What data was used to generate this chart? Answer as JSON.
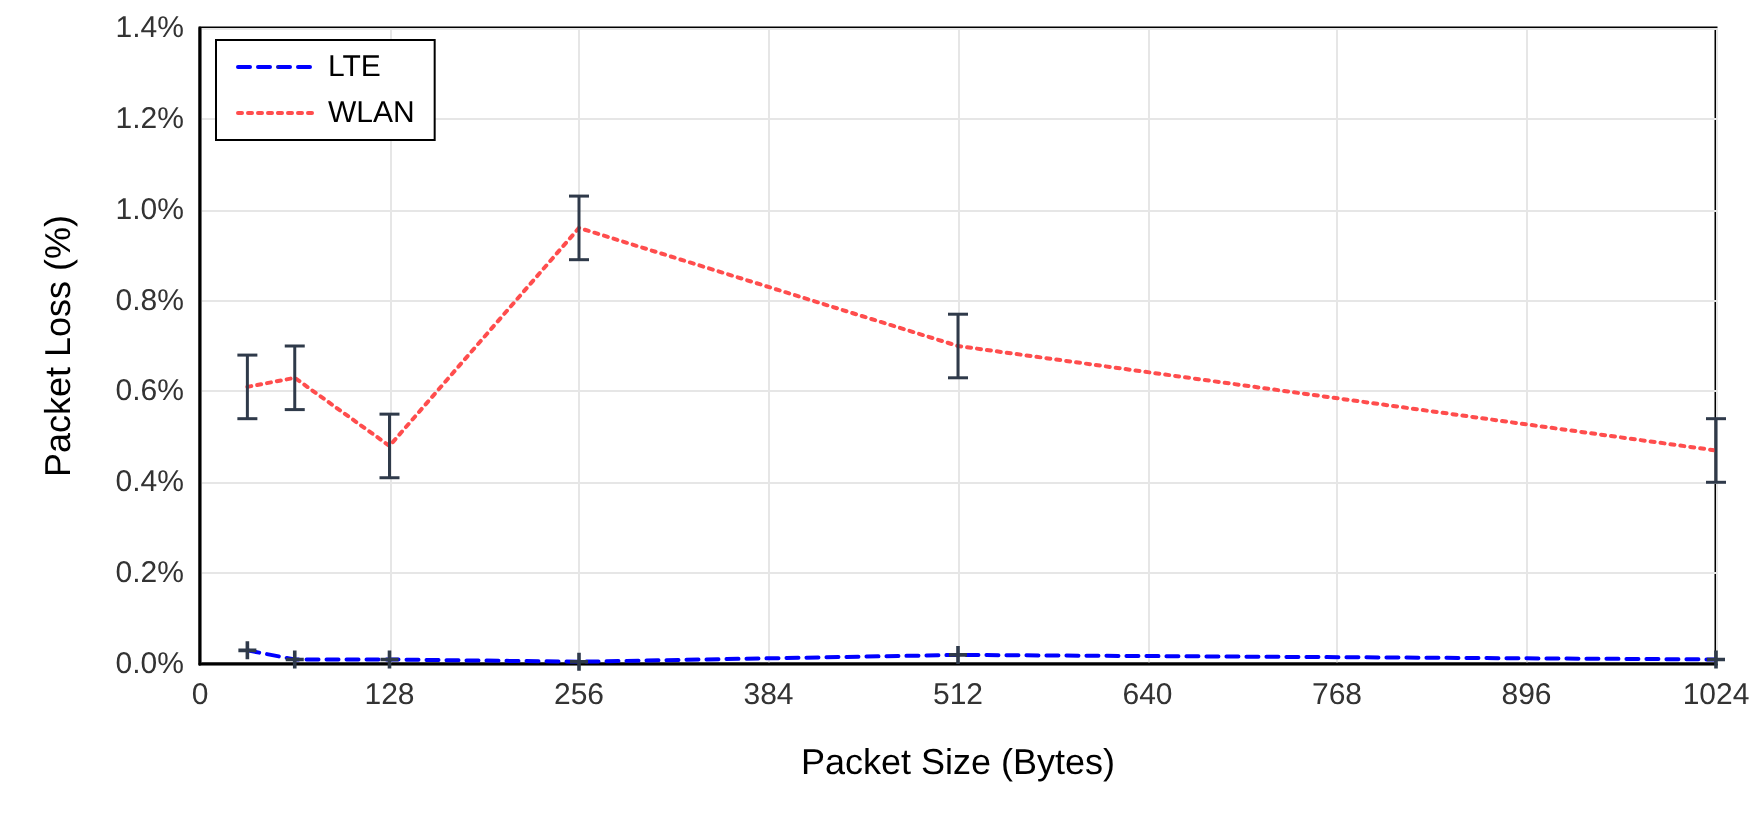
{
  "chart_data": {
    "type": "line",
    "xlabel": "Packet Size (Bytes)",
    "ylabel": "Packet Loss (%)",
    "x": [
      32,
      64,
      128,
      256,
      512,
      1024
    ],
    "series": [
      {
        "name": "LTE",
        "color": "#0000ff",
        "line_style": "dashed",
        "marker": "cross",
        "values": [
          0.03,
          0.01,
          0.01,
          0.005,
          0.02,
          0.01
        ]
      },
      {
        "name": "WLAN",
        "color": "#ff4d4d",
        "line_style": "dotted",
        "values": [
          0.61,
          0.63,
          0.48,
          0.96,
          0.7,
          0.47
        ],
        "errors": [
          0.07,
          0.07,
          0.07,
          0.07,
          0.07,
          0.07
        ]
      }
    ],
    "xlim": [
      0,
      1024
    ],
    "xticks": [
      0,
      128,
      256,
      384,
      512,
      640,
      768,
      896,
      1024
    ],
    "ylim": [
      0,
      1.4
    ],
    "yticks": [
      {
        "value": 0,
        "label": "0.0%"
      },
      {
        "value": 0.2,
        "label": "0.2%"
      },
      {
        "value": 0.4,
        "label": "0.4%"
      },
      {
        "value": 0.6,
        "label": "0.6%"
      },
      {
        "value": 0.8,
        "label": "0.8%"
      },
      {
        "value": 1.0,
        "label": "1.0%"
      },
      {
        "value": 1.2,
        "label": "1.2%"
      },
      {
        "value": 1.4,
        "label": "1.4%"
      }
    ],
    "grid": true,
    "legend": "top left",
    "marker": "none"
  }
}
